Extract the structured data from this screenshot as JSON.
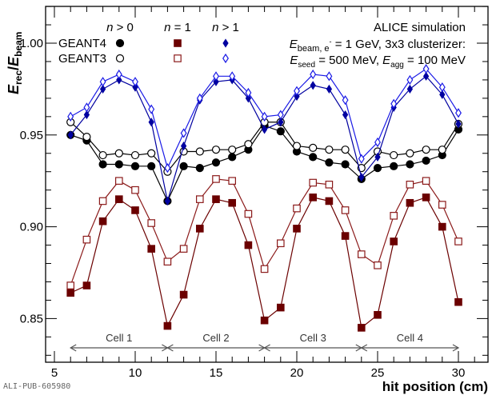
{
  "chart_data": {
    "type": "line",
    "title": "",
    "xlabel": "hit position (cm)",
    "ylabel_main": "E",
    "ylabel_num_sub": "rec",
    "ylabel_den_sub": "beam",
    "xlim": [
      4.0,
      31.5
    ],
    "ylim": [
      0.826,
      1.021
    ],
    "x_ticks": [
      5,
      10,
      15,
      20,
      25,
      30
    ],
    "x_tick_labels": [
      "5",
      "10",
      "15",
      "20",
      "25",
      "30"
    ],
    "y_ticks": [
      0.85,
      0.9,
      0.95,
      1.0
    ],
    "y_tick_labels": [
      "0.85",
      "0.90",
      "0.95",
      "1.00"
    ],
    "grid": false,
    "legend_location": "top-left",
    "legend": {
      "columns": [
        {
          "prefix": "n",
          "text": " > 0"
        },
        {
          "prefix": "n",
          "text": " = 1"
        },
        {
          "prefix": "n",
          "text": " > 1"
        }
      ],
      "rows": [
        "GEANT4",
        "GEANT3"
      ]
    },
    "annotations": {
      "line1": "ALICE simulation",
      "line2_pre": "E",
      "line2_sub": "beam, e",
      "line2_sup": "-",
      "line2_post": " = 1 GeV, 3x3 clusterizer:",
      "line3_a": "E",
      "line3_a_sub": "seed",
      "line3_a_post": " = 500 MeV, ",
      "line3_b": "E",
      "line3_b_sub": "agg",
      "line3_b_post": " = 100 MeV"
    },
    "cells": [
      {
        "label": "Cell 1",
        "from": 6,
        "to": 12
      },
      {
        "label": "Cell 2",
        "from": 12,
        "to": 18
      },
      {
        "label": "Cell 3",
        "from": 18,
        "to": 24
      },
      {
        "label": "Cell 4",
        "from": 24,
        "to": 30
      }
    ],
    "x": [
      6,
      7,
      8,
      9,
      10,
      11,
      12,
      13,
      14,
      15,
      16,
      17,
      18,
      19,
      20,
      21,
      22,
      23,
      24,
      25,
      26,
      27,
      28,
      29,
      30
    ],
    "series": [
      {
        "name": "GEANT4 n>0",
        "color": "#000000",
        "marker": "circle",
        "filled": true,
        "values": [
          0.95,
          0.947,
          0.934,
          0.934,
          0.933,
          0.933,
          0.914,
          0.933,
          0.932,
          0.935,
          0.938,
          0.942,
          0.955,
          0.952,
          0.941,
          0.938,
          0.935,
          0.934,
          0.926,
          0.932,
          0.933,
          0.934,
          0.936,
          0.939,
          0.953
        ]
      },
      {
        "name": "GEANT3 n>0",
        "color": "#000000",
        "marker": "circle",
        "filled": false,
        "values": [
          0.957,
          0.949,
          0.939,
          0.94,
          0.939,
          0.94,
          0.93,
          0.941,
          0.941,
          0.942,
          0.942,
          0.945,
          0.957,
          0.957,
          0.944,
          0.943,
          0.942,
          0.942,
          0.932,
          0.941,
          0.939,
          0.94,
          0.942,
          0.942,
          0.956
        ]
      },
      {
        "name": "GEANT4 n=1",
        "color": "#6b0000",
        "marker": "square",
        "filled": true,
        "values": [
          0.864,
          0.868,
          0.903,
          0.915,
          0.909,
          0.888,
          0.846,
          0.863,
          0.899,
          0.915,
          0.913,
          0.89,
          0.849,
          0.856,
          0.899,
          0.916,
          0.914,
          0.895,
          0.845,
          0.852,
          0.892,
          0.913,
          0.916,
          0.9,
          0.859
        ]
      },
      {
        "name": "GEANT3 n=1",
        "color": "#8b1a1a",
        "marker": "square",
        "filled": false,
        "values": [
          0.868,
          0.893,
          0.914,
          0.925,
          0.92,
          0.902,
          0.881,
          0.888,
          0.915,
          0.926,
          0.925,
          0.907,
          0.877,
          0.891,
          0.91,
          0.924,
          0.923,
          0.909,
          0.885,
          0.879,
          0.906,
          0.923,
          0.925,
          0.912,
          0.892
        ]
      },
      {
        "name": "GEANT4 n>1",
        "color": "#0000a0",
        "marker": "diamond",
        "filled": true,
        "values": [
          0.95,
          0.961,
          0.975,
          0.98,
          0.976,
          0.957,
          0.914,
          0.944,
          0.969,
          0.979,
          0.98,
          0.97,
          0.953,
          0.957,
          0.971,
          0.977,
          0.975,
          0.961,
          0.927,
          0.938,
          0.965,
          0.975,
          0.982,
          0.972,
          0.956
        ]
      },
      {
        "name": "GEANT3 n>1",
        "color": "#1a1ae6",
        "marker": "diamond",
        "filled": false,
        "values": [
          0.96,
          0.965,
          0.979,
          0.983,
          0.979,
          0.964,
          0.932,
          0.951,
          0.97,
          0.982,
          0.982,
          0.973,
          0.96,
          0.961,
          0.974,
          0.983,
          0.982,
          0.969,
          0.937,
          0.946,
          0.967,
          0.98,
          0.986,
          0.976,
          0.962
        ]
      }
    ]
  },
  "footer": {
    "id": "ALI-PUB-605980"
  }
}
